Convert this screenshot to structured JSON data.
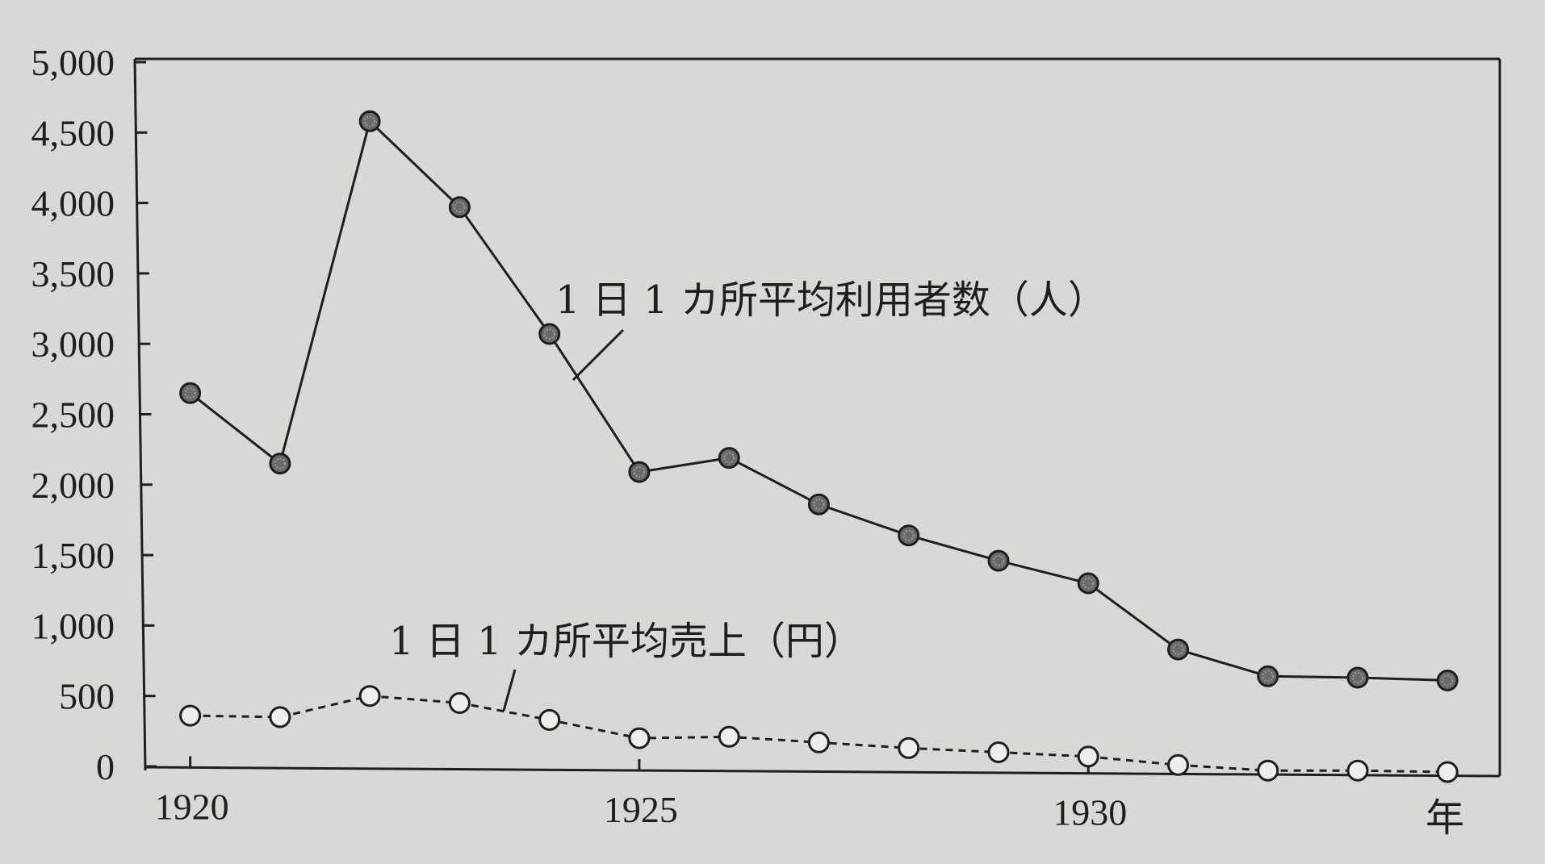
{
  "chart_data": {
    "type": "line",
    "title": "",
    "xlabel": "年",
    "ylabel": "",
    "x": [
      1920,
      1921,
      1922,
      1923,
      1924,
      1925,
      1926,
      1927,
      1928,
      1929,
      1930,
      1931,
      1932,
      1933,
      1934
    ],
    "xlim": [
      1919.5,
      1934.6
    ],
    "ylim": [
      0,
      5000
    ],
    "x_tick_values": [
      1920,
      1925,
      1930
    ],
    "x_tick_labels": [
      "1920",
      "1925",
      "1930"
    ],
    "y_tick_values": [
      0,
      500,
      1000,
      1500,
      2000,
      2500,
      3000,
      3500,
      4000,
      4500,
      5000
    ],
    "y_tick_labels": [
      "0",
      "500",
      "1,000",
      "1,500",
      "2,000",
      "2,500",
      "3,000",
      "3,500",
      "4,000",
      "4,500",
      "5,000"
    ],
    "grid": false,
    "series": [
      {
        "name": "1 日 1 カ所平均利用者数（人）",
        "line_style": "solid",
        "marker": "filled-circle",
        "values": [
          2650,
          2150,
          4580,
          3970,
          3070,
          2090,
          2190,
          1860,
          1640,
          1460,
          1300,
          830,
          640,
          630,
          610
        ]
      },
      {
        "name": "1 日 1 カ所平均売上（円）",
        "line_style": "dashed",
        "marker": "open-circle",
        "values": [
          360,
          350,
          500,
          450,
          330,
          200,
          210,
          170,
          130,
          100,
          70,
          10,
          -30,
          -30,
          -40
        ]
      }
    ],
    "colors": {
      "background": "#d8d9d4",
      "ink": "#1e1e1e",
      "filled_marker": "#6a6a6a",
      "open_marker": "#efefea"
    }
  }
}
